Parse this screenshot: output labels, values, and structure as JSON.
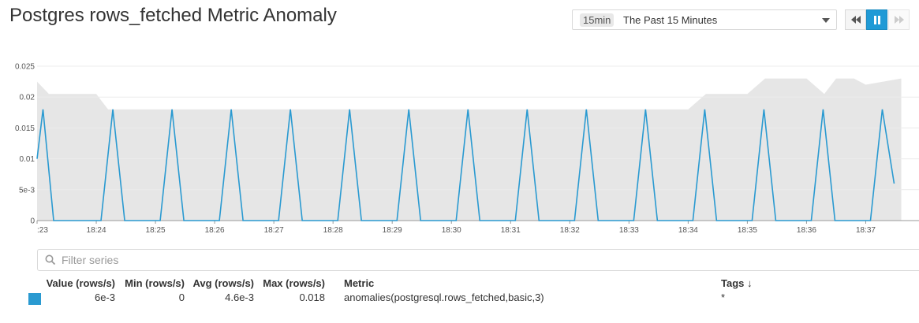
{
  "title": "Postgres rows_fetched Metric Anomaly",
  "timeframe": {
    "badge": "15min",
    "label": "The Past 15 Minutes"
  },
  "controls": {
    "rewind_icon": "rewind-icon",
    "pause_icon": "pause-icon",
    "forward_icon": "fast-forward-icon",
    "accent": "#1f9ad6"
  },
  "filter": {
    "placeholder": "Filter series",
    "icon": "search-icon"
  },
  "legend": {
    "headers": {
      "value": "Value (rows/s)",
      "min": "Min (rows/s)",
      "avg": "Avg (rows/s)",
      "max": "Max (rows/s)",
      "metric": "Metric",
      "tags": "Tags ↓"
    },
    "rows": [
      {
        "color": "#2a9ad1",
        "value": "6e-3",
        "min": "0",
        "avg": "4.6e-3",
        "max": "0.018",
        "metric": "anomalies(postgresql.rows_fetched,basic,3)",
        "tags": "*"
      }
    ]
  },
  "chart_data": {
    "type": "line",
    "title": "",
    "xlabel": "",
    "ylabel": "",
    "ylim": [
      0,
      0.025
    ],
    "y_ticks": [
      "0",
      "5e-3",
      "0.01",
      "0.015",
      "0.02",
      "0.025"
    ],
    "x_ticks": [
      ":23",
      "18:24",
      "18:25",
      "18:26",
      "18:27",
      "18:28",
      "18:29",
      "18:30",
      "18:31",
      "18:32",
      "18:33",
      "18:34",
      "18:35",
      "18:36",
      "18:37"
    ],
    "grid": true,
    "series": [
      {
        "color": "#2a9ad1",
        "x": [
          0.0,
          0.1,
          0.28,
          1.08,
          1.28,
          1.48,
          2.08,
          2.28,
          2.48,
          3.08,
          3.28,
          3.48,
          4.08,
          4.28,
          4.48,
          5.08,
          5.28,
          5.48,
          6.08,
          6.28,
          6.48,
          7.08,
          7.28,
          7.48,
          8.08,
          8.28,
          8.48,
          9.08,
          9.28,
          9.48,
          10.08,
          10.28,
          10.48,
          11.08,
          11.28,
          11.48,
          12.08,
          12.28,
          12.48,
          13.08,
          13.28,
          13.48,
          14.08,
          14.28,
          14.48
        ],
        "values": [
          0.01,
          0.018,
          0,
          0,
          0.018,
          0,
          0,
          0.018,
          0,
          0,
          0.018,
          0,
          0,
          0.018,
          0,
          0,
          0.018,
          0,
          0,
          0.018,
          0,
          0,
          0.018,
          0,
          0,
          0.018,
          0,
          0,
          0.018,
          0,
          0,
          0.018,
          0,
          0,
          0.018,
          0,
          0,
          0.018,
          0,
          0,
          0.018,
          0,
          0,
          0.018,
          0.006
        ]
      }
    ],
    "band": {
      "color": "#e6e6e6",
      "x": [
        0.0,
        0.2,
        1.0,
        1.2,
        11.0,
        11.3,
        12.0,
        12.3,
        13.0,
        13.3,
        13.5,
        13.8,
        14.0,
        14.6
      ],
      "upper": [
        0.0225,
        0.0205,
        0.0205,
        0.018,
        0.018,
        0.0205,
        0.0205,
        0.023,
        0.023,
        0.0205,
        0.023,
        0.023,
        0.022,
        0.023
      ],
      "lower": [
        0,
        0,
        0,
        0,
        0,
        0,
        0,
        0,
        0,
        0,
        0,
        0,
        0,
        0
      ]
    }
  }
}
